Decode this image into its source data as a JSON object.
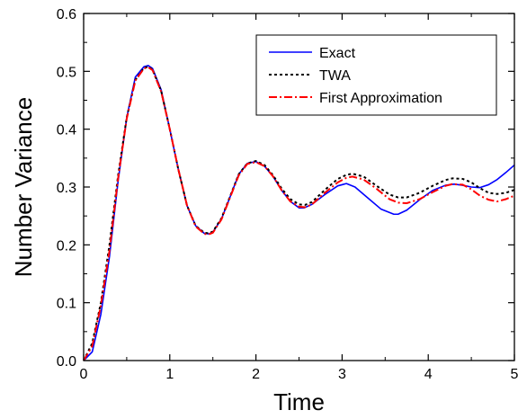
{
  "chart_data": {
    "type": "line",
    "title": "",
    "xlabel": "Time",
    "ylabel": "Number Variance",
    "xlim": [
      0,
      5
    ],
    "ylim": [
      0,
      0.6
    ],
    "xticks": [
      "0",
      "1",
      "2",
      "3",
      "4",
      "5"
    ],
    "yticks": [
      "0.0",
      "0.1",
      "0.2",
      "0.3",
      "0.4",
      "0.5",
      "0.6"
    ],
    "grid": false,
    "legend_position": "top-right",
    "series": [
      {
        "name": "Exact",
        "color": "#0000ff",
        "style": "solid",
        "x": [
          0,
          0.1,
          0.2,
          0.3,
          0.4,
          0.5,
          0.6,
          0.7,
          0.75,
          0.8,
          0.9,
          1.0,
          1.1,
          1.2,
          1.3,
          1.4,
          1.45,
          1.5,
          1.6,
          1.7,
          1.8,
          1.9,
          2.0,
          2.1,
          2.2,
          2.3,
          2.4,
          2.5,
          2.56,
          2.65,
          2.8,
          2.95,
          3.05,
          3.15,
          3.3,
          3.45,
          3.6,
          3.65,
          3.75,
          3.9,
          4.05,
          4.2,
          4.3,
          4.4,
          4.5,
          4.6,
          4.7,
          4.8,
          4.9,
          5.0
        ],
        "y": [
          0.0,
          0.015,
          0.08,
          0.18,
          0.31,
          0.42,
          0.49,
          0.508,
          0.51,
          0.505,
          0.468,
          0.4,
          0.33,
          0.268,
          0.233,
          0.22,
          0.219,
          0.222,
          0.245,
          0.283,
          0.322,
          0.341,
          0.344,
          0.336,
          0.318,
          0.294,
          0.275,
          0.264,
          0.264,
          0.27,
          0.287,
          0.302,
          0.306,
          0.3,
          0.281,
          0.262,
          0.253,
          0.253,
          0.26,
          0.278,
          0.294,
          0.303,
          0.305,
          0.303,
          0.3,
          0.299,
          0.304,
          0.313,
          0.325,
          0.338
        ]
      },
      {
        "name": "TWA",
        "color": "#000000",
        "style": "dotted",
        "x": [
          0,
          0.1,
          0.2,
          0.3,
          0.4,
          0.5,
          0.6,
          0.7,
          0.75,
          0.8,
          0.9,
          1.0,
          1.1,
          1.2,
          1.3,
          1.4,
          1.45,
          1.5,
          1.6,
          1.7,
          1.8,
          1.9,
          2.0,
          2.1,
          2.2,
          2.3,
          2.4,
          2.5,
          2.57,
          2.65,
          2.8,
          2.95,
          3.05,
          3.12,
          3.25,
          3.4,
          3.55,
          3.65,
          3.75,
          3.9,
          4.05,
          4.2,
          4.28,
          4.4,
          4.5,
          4.6,
          4.7,
          4.8,
          4.9,
          5.0
        ],
        "y": [
          0.0,
          0.03,
          0.1,
          0.2,
          0.32,
          0.42,
          0.485,
          0.506,
          0.508,
          0.503,
          0.466,
          0.4,
          0.33,
          0.268,
          0.233,
          0.221,
          0.22,
          0.223,
          0.246,
          0.284,
          0.322,
          0.341,
          0.345,
          0.338,
          0.32,
          0.297,
          0.279,
          0.27,
          0.269,
          0.274,
          0.295,
          0.314,
          0.321,
          0.323,
          0.318,
          0.302,
          0.287,
          0.282,
          0.282,
          0.29,
          0.302,
          0.312,
          0.315,
          0.314,
          0.308,
          0.298,
          0.29,
          0.288,
          0.29,
          0.295
        ]
      },
      {
        "name": "First Approximation",
        "color": "#ff0000",
        "style": "dashdot",
        "x": [
          0,
          0.1,
          0.2,
          0.3,
          0.4,
          0.5,
          0.6,
          0.7,
          0.75,
          0.8,
          0.9,
          1.0,
          1.1,
          1.2,
          1.3,
          1.4,
          1.45,
          1.5,
          1.6,
          1.7,
          1.8,
          1.9,
          2.0,
          2.1,
          2.2,
          2.3,
          2.4,
          2.5,
          2.57,
          2.65,
          2.8,
          2.95,
          3.05,
          3.12,
          3.25,
          3.4,
          3.55,
          3.65,
          3.75,
          3.9,
          4.05,
          4.2,
          4.28,
          4.4,
          4.5,
          4.6,
          4.7,
          4.8,
          4.9,
          5.0
        ],
        "y": [
          0.0,
          0.025,
          0.095,
          0.19,
          0.315,
          0.418,
          0.484,
          0.505,
          0.507,
          0.502,
          0.465,
          0.4,
          0.33,
          0.268,
          0.232,
          0.219,
          0.218,
          0.221,
          0.244,
          0.282,
          0.32,
          0.34,
          0.343,
          0.336,
          0.318,
          0.294,
          0.275,
          0.266,
          0.265,
          0.27,
          0.29,
          0.308,
          0.316,
          0.318,
          0.313,
          0.297,
          0.279,
          0.273,
          0.272,
          0.279,
          0.291,
          0.302,
          0.305,
          0.304,
          0.296,
          0.285,
          0.278,
          0.275,
          0.279,
          0.285
        ]
      }
    ]
  }
}
